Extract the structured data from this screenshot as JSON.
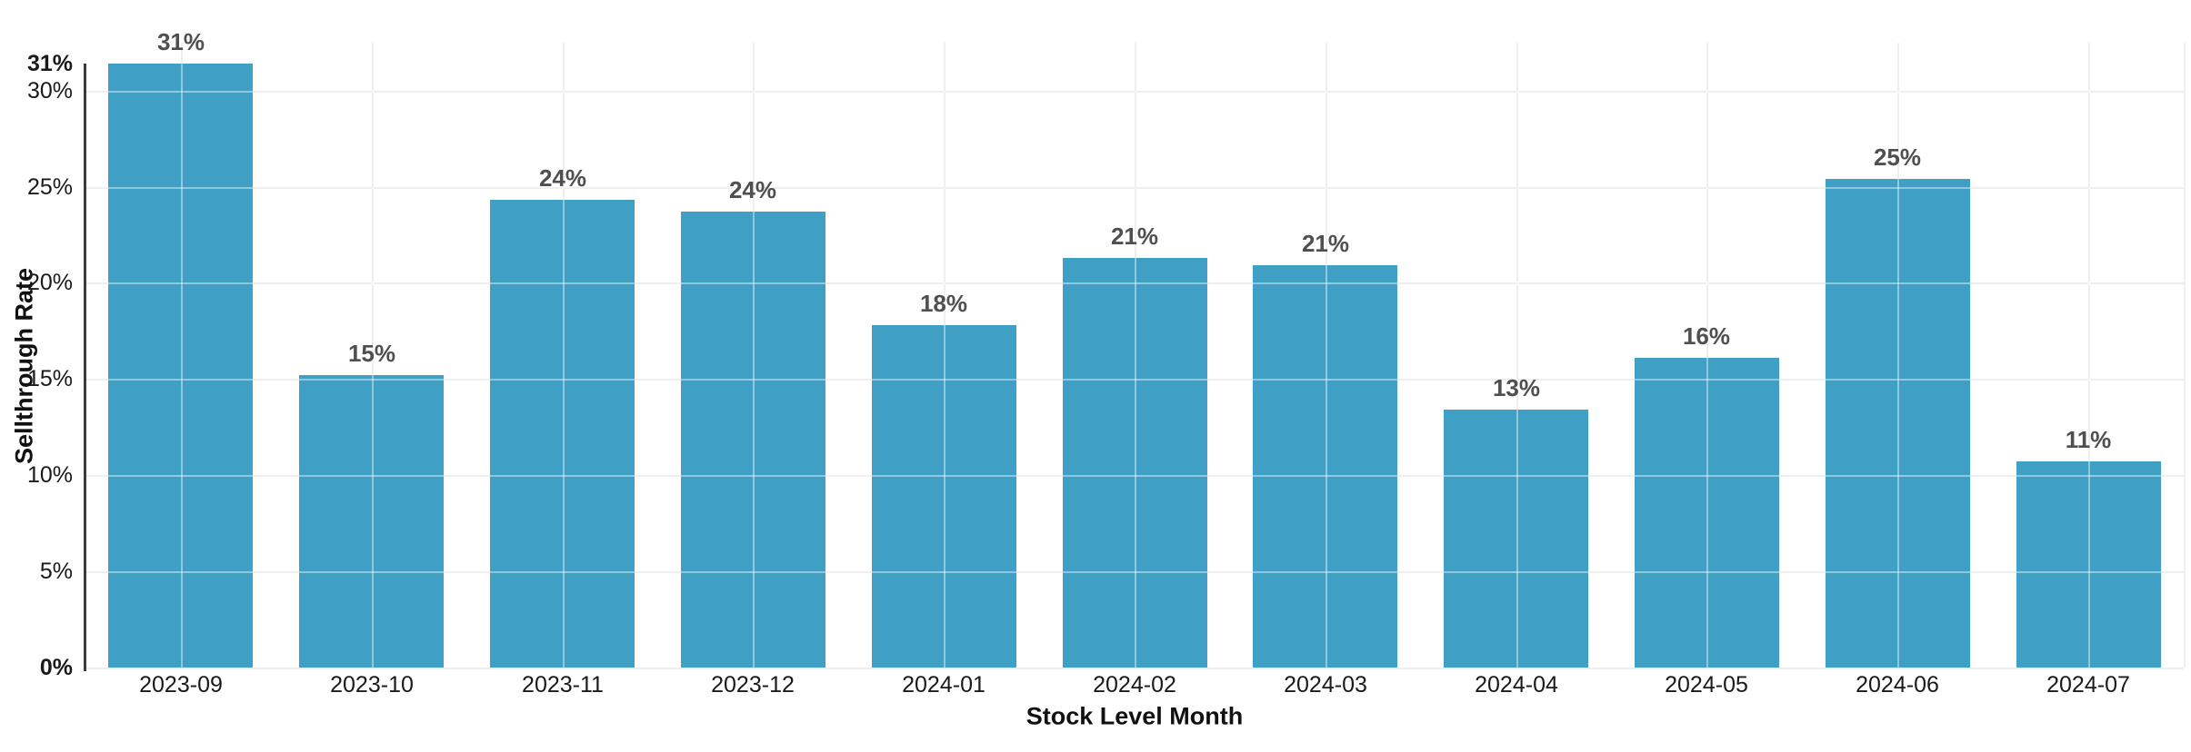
{
  "chart_data": {
    "type": "bar",
    "title": "",
    "xlabel": "Stock Level Month",
    "ylabel": "Sellthrough Rate",
    "categories": [
      "2023-09",
      "2023-10",
      "2023-11",
      "2023-12",
      "2024-01",
      "2024-02",
      "2024-03",
      "2024-04",
      "2024-05",
      "2024-06",
      "2024-07"
    ],
    "values": [
      31.4,
      15.2,
      24.3,
      23.7,
      17.8,
      21.3,
      20.9,
      13.4,
      16.1,
      25.4,
      10.7
    ],
    "bar_labels": [
      "31%",
      "15%",
      "24%",
      "24%",
      "18%",
      "21%",
      "21%",
      "13%",
      "16%",
      "25%",
      "11%"
    ],
    "ylim": [
      0,
      31.4
    ],
    "yticks": [
      {
        "value": 31.4,
        "label": "31%",
        "bold": true
      },
      {
        "value": 30,
        "label": "30%",
        "bold": false
      },
      {
        "value": 25,
        "label": "25%",
        "bold": false
      },
      {
        "value": 20,
        "label": "20%",
        "bold": false
      },
      {
        "value": 15,
        "label": "15%",
        "bold": false
      },
      {
        "value": 10,
        "label": "10%",
        "bold": false
      },
      {
        "value": 5,
        "label": "5%",
        "bold": false
      },
      {
        "value": 0,
        "label": "0%",
        "bold": true
      }
    ],
    "grid": "horizontal at 5% steps and vertical at bar centers, drawn light over bars",
    "legend": "none",
    "colors": {
      "bar": "#3f9fc5",
      "value_label": "#4f4f4f",
      "tick_label": "#1a1a1a",
      "axis_title": "#111111",
      "gridline": "#e3e3e3",
      "y_axis_line": "#3a3a3a",
      "background": "#ffffff"
    }
  }
}
